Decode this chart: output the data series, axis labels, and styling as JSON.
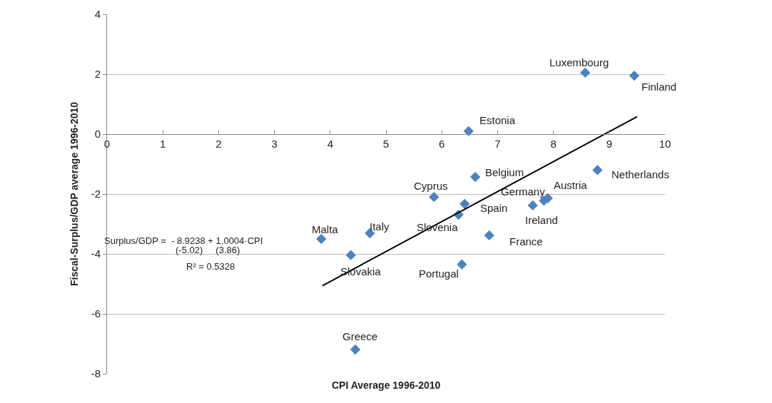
{
  "chart_data": {
    "type": "scatter",
    "xlabel": "CPI Average 1996-2010",
    "ylabel": "Fiscal-Surplus/GDP average 1996-2010",
    "xlim": [
      0,
      10
    ],
    "xticks": [
      0,
      1,
      2,
      3,
      4,
      5,
      6,
      7,
      8,
      9,
      10
    ],
    "ylim": [
      -8,
      4
    ],
    "yticks": [
      -8,
      -6,
      -4,
      -2,
      0,
      2,
      4
    ],
    "grid": "y",
    "marker": "diamond",
    "series": [
      {
        "color": "#4f81bd",
        "x": [
          8.57,
          9.45,
          6.48,
          6.6,
          8.79,
          5.86,
          7.83,
          7.9,
          6.41,
          6.3,
          7.63,
          6.85,
          6.36,
          4.71,
          3.84,
          4.37,
          4.45
        ],
        "values": [
          2.05,
          1.95,
          0.1,
          -1.43,
          -1.2,
          -2.1,
          -2.22,
          -2.14,
          -2.33,
          -2.69,
          -2.38,
          -3.38,
          -4.35,
          -3.31,
          -3.5,
          -4.04,
          -7.19
        ]
      },
      {
        "type": "line",
        "color": "#000000",
        "marker": "none",
        "line_style": "solid",
        "x": [
          3.86,
          9.5
        ],
        "values": [
          -5.06,
          0.58
        ]
      }
    ],
    "annotations": [
      {
        "text": "Luxembourg",
        "x": 8.57,
        "y": 2.05
      },
      {
        "text": "Finland",
        "x": 9.45,
        "y": 1.95
      },
      {
        "text": "Estonia",
        "x": 6.48,
        "y": 0.1
      },
      {
        "text": "Belgium",
        "x": 6.6,
        "y": -1.43
      },
      {
        "text": "Netherlands",
        "x": 8.79,
        "y": -1.2
      },
      {
        "text": "Cyprus",
        "x": 5.86,
        "y": -2.1
      },
      {
        "text": "Germany",
        "x": 7.83,
        "y": -2.22
      },
      {
        "text": "Austria",
        "x": 7.9,
        "y": -2.14
      },
      {
        "text": "Spain",
        "x": 6.41,
        "y": -2.33
      },
      {
        "text": "Slovenia",
        "x": 6.3,
        "y": -2.69
      },
      {
        "text": "Ireland",
        "x": 7.63,
        "y": -2.38
      },
      {
        "text": "France",
        "x": 6.85,
        "y": -3.38
      },
      {
        "text": "Portugal",
        "x": 6.36,
        "y": -4.35
      },
      {
        "text": "Italy",
        "x": 4.71,
        "y": -3.31
      },
      {
        "text": "Malta",
        "x": 3.84,
        "y": -3.5
      },
      {
        "text": "Slovakia",
        "x": 4.37,
        "y": -4.04
      },
      {
        "text": "Greece",
        "x": 4.45,
        "y": -7.19
      },
      "Surplus/GDP =  - 8.9238 + 1.0004·CPI",
      "(-5.02)     (3.86)",
      "R² = 0.5328"
    ]
  }
}
